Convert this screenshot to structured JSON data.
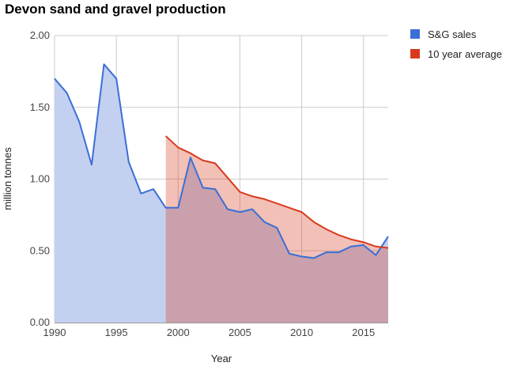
{
  "title": "Devon sand and gravel production",
  "chart_data": {
    "type": "area",
    "title": "Devon sand and gravel production",
    "xlabel": "Year",
    "ylabel": "million tonnes",
    "xlim": [
      1990,
      2017
    ],
    "ylim": [
      0,
      2
    ],
    "x_ticks": [
      "1990",
      "1995",
      "2000",
      "2005",
      "2010",
      "2015"
    ],
    "y_ticks": [
      "0.00",
      "0.50",
      "1.00",
      "1.50",
      "2.00"
    ],
    "grid": true,
    "legend_position": "top-right",
    "series": [
      {
        "name": "S&G sales",
        "color": "#3b6fd6",
        "fill": "#c3d0ef",
        "x": [
          1990,
          1991,
          1992,
          1993,
          1994,
          1995,
          1996,
          1997,
          1998,
          1999,
          2000,
          2001,
          2002,
          2003,
          2004,
          2005,
          2006,
          2007,
          2008,
          2009,
          2010,
          2011,
          2012,
          2013,
          2014,
          2015,
          2016,
          2017
        ],
        "values": [
          1.7,
          1.6,
          1.4,
          1.1,
          1.8,
          1.7,
          1.12,
          0.9,
          0.93,
          0.8,
          0.8,
          1.15,
          0.94,
          0.93,
          0.79,
          0.77,
          0.79,
          0.7,
          0.66,
          0.48,
          0.46,
          0.45,
          0.49,
          0.49,
          0.53,
          0.54,
          0.47,
          0.6
        ]
      },
      {
        "name": "10 year average",
        "color": "#d83a1e",
        "fill": "#f4c2b8",
        "x": [
          1999,
          2000,
          2001,
          2002,
          2003,
          2004,
          2005,
          2006,
          2007,
          2008,
          2009,
          2010,
          2011,
          2012,
          2013,
          2014,
          2015,
          2016,
          2017
        ],
        "values": [
          1.3,
          1.22,
          1.18,
          1.13,
          1.11,
          1.01,
          0.91,
          0.88,
          0.86,
          0.83,
          0.8,
          0.77,
          0.7,
          0.65,
          0.61,
          0.58,
          0.56,
          0.53,
          0.52
        ]
      }
    ]
  }
}
